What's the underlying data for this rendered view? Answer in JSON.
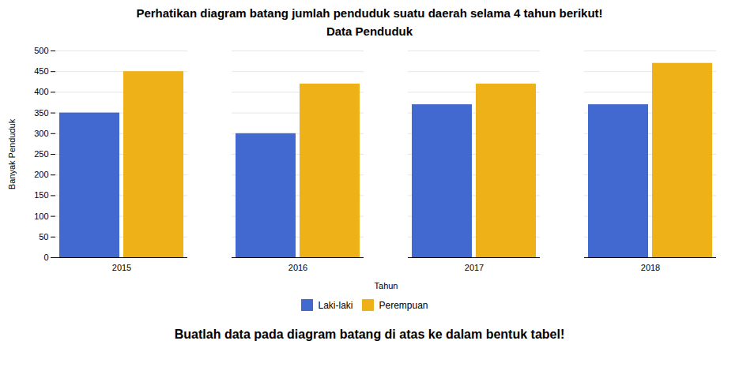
{
  "chart_data": {
    "type": "bar",
    "title": "Data Penduduk",
    "annotations": [
      "Perhatikan diagram batang jumlah penduduk suatu daerah selama 4 tahun berikut!",
      "Buatlah data pada diagram batang di atas ke dalam bentuk tabel!"
    ],
    "xlabel": "Tahun",
    "ylabel": "Banyak Penduduk",
    "categories": [
      "2015",
      "2016",
      "2017",
      "2018"
    ],
    "series": [
      {
        "name": "Laki-laki",
        "values": [
          350,
          300,
          370,
          370
        ]
      },
      {
        "name": "Perempuan",
        "values": [
          450,
          420,
          420,
          470
        ]
      }
    ],
    "ylim": [
      0,
      500
    ],
    "yticks": [
      0,
      50,
      100,
      150,
      200,
      250,
      300,
      350,
      400,
      450,
      500
    ],
    "grid": true,
    "legend": "bottom"
  }
}
